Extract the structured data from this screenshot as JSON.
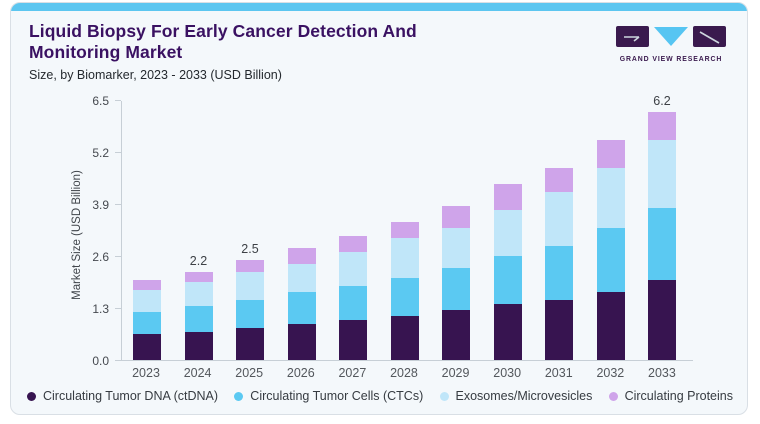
{
  "card": {
    "background": "#F4F8FB",
    "border_color": "#D9DFE5",
    "top_strip_color": "#5CC6F0"
  },
  "header": {
    "title": "Liquid Biopsy For Early Cancer Detection And Monitoring Market",
    "title_color": "#3A1162",
    "subtitle": "Size, by Biomarker, 2023 - 2033 (USD Billion)"
  },
  "logo": {
    "text": "GRAND VIEW RESEARCH",
    "dark_color": "#3A1A4E",
    "blue_color": "#56C5F2"
  },
  "chart_data": {
    "type": "bar",
    "stacked": true,
    "title": "Liquid Biopsy For Early Cancer Detection And Monitoring Market",
    "subtitle": "Size, by Biomarker, 2023 - 2033 (USD Billion)",
    "xlabel": "",
    "ylabel": "Market Size (USD Billion)",
    "ylim": [
      0,
      6.5
    ],
    "yticks": [
      "0.0",
      "1.3",
      "2.6",
      "3.9",
      "5.2",
      "6.5"
    ],
    "grid": false,
    "legend_position": "bottom",
    "categories": [
      "2023",
      "2024",
      "2025",
      "2026",
      "2027",
      "2028",
      "2029",
      "2030",
      "2031",
      "2032",
      "2033"
    ],
    "series": [
      {
        "name": "Circulating Tumor DNA (ctDNA)",
        "color": "#371450",
        "values": [
          0.65,
          0.7,
          0.8,
          0.9,
          1.0,
          1.1,
          1.25,
          1.4,
          1.5,
          1.7,
          2.0
        ]
      },
      {
        "name": "Circulating Tumor Cells (CTCs)",
        "color": "#5BC9F2",
        "values": [
          0.55,
          0.65,
          0.7,
          0.8,
          0.85,
          0.95,
          1.05,
          1.2,
          1.35,
          1.6,
          1.8
        ]
      },
      {
        "name": "Exosomes/Microvesicles",
        "color": "#C0E6F9",
        "values": [
          0.55,
          0.6,
          0.7,
          0.7,
          0.85,
          1.0,
          1.0,
          1.15,
          1.35,
          1.5,
          1.7
        ]
      },
      {
        "name": "Circulating Proteins",
        "color": "#CFA4EA",
        "values": [
          0.25,
          0.25,
          0.3,
          0.4,
          0.4,
          0.4,
          0.55,
          0.65,
          0.6,
          0.7,
          0.7
        ]
      }
    ],
    "totals": [
      2.0,
      2.2,
      2.5,
      2.8,
      3.1,
      3.45,
      3.85,
      4.4,
      4.8,
      5.5,
      6.2
    ],
    "bar_labels": {
      "2024": "2.2",
      "2025": "2.5",
      "2033": "6.2"
    }
  }
}
